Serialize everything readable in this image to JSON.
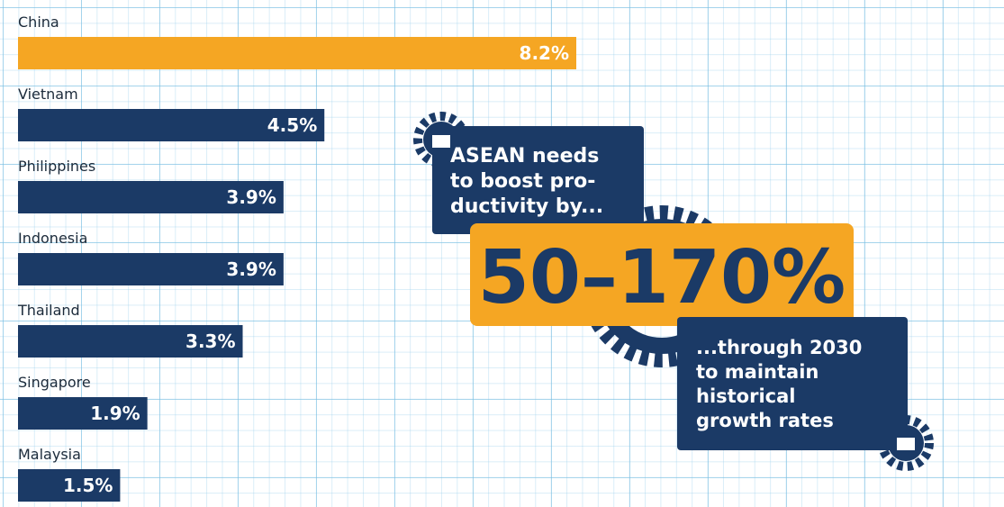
{
  "chart_data": {
    "type": "bar",
    "orientation": "horizontal",
    "categories": [
      "China",
      "Vietnam",
      "Philippines",
      "Indonesia",
      "Thailand",
      "Singapore",
      "Malaysia"
    ],
    "values": [
      8.2,
      4.5,
      3.9,
      3.9,
      3.3,
      1.9,
      1.5
    ],
    "value_labels": [
      "8.2%",
      "4.5%",
      "3.9%",
      "3.9%",
      "3.3%",
      "1.9%",
      "1.5%"
    ],
    "colors": [
      "#f5a623",
      "#1b3a66",
      "#1b3a66",
      "#1b3a66",
      "#1b3a66",
      "#1b3a66",
      "#1b3a66"
    ],
    "annotations": [
      {
        "lines": [
          "ASEAN needs",
          "to boost pro-",
          "ductivity by..."
        ]
      },
      {
        "lines": [
          "50–170%"
        ]
      },
      {
        "lines": [
          "...through 2030",
          "to maintain",
          "historical",
          "growth rates"
        ]
      }
    ]
  }
}
